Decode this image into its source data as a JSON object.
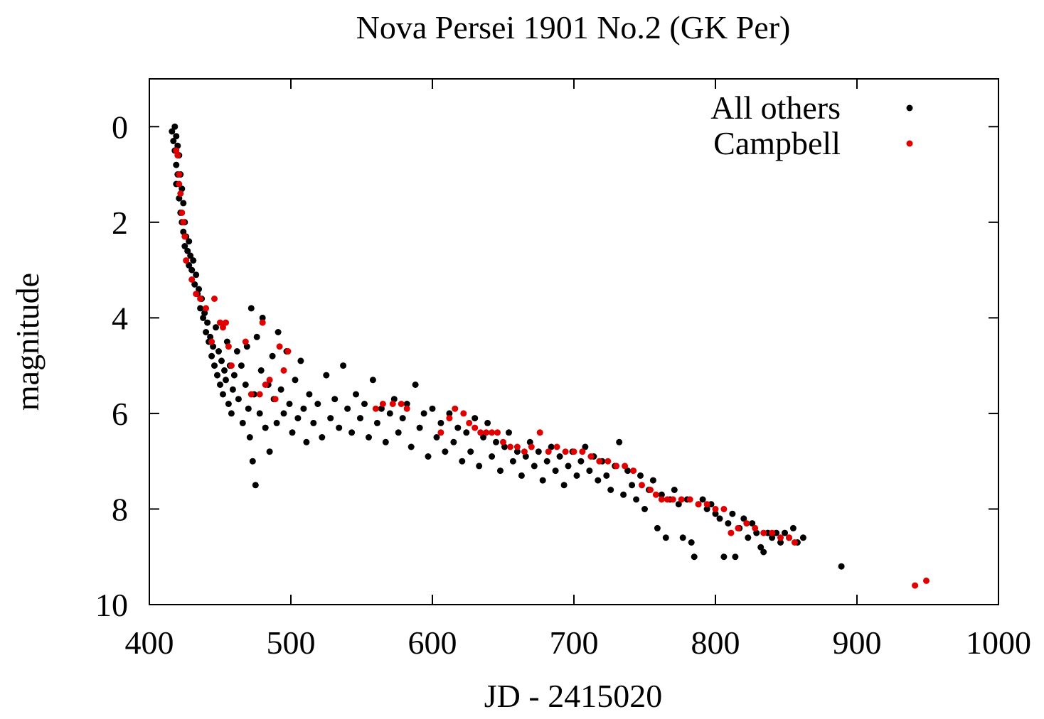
{
  "chart_data": {
    "type": "scatter",
    "title": "Nova Persei 1901 No.2 (GK Per)",
    "xlabel": "JD - 2415020",
    "ylabel": "magnitude",
    "xlim": [
      400,
      1000
    ],
    "ylim": [
      10,
      -1
    ],
    "y_inverted": true,
    "grid": false,
    "legend_position": "top-right",
    "x_ticks": [
      400,
      500,
      600,
      700,
      800,
      900,
      1000
    ],
    "x_tick_labels": [
      "400",
      "500",
      "600",
      "700",
      "800",
      "900",
      "1000"
    ],
    "y_ticks": [
      0,
      2,
      4,
      6,
      8,
      10
    ],
    "y_tick_labels": [
      "0",
      "2",
      "4",
      "6",
      "8",
      "10"
    ],
    "series": [
      {
        "name": "All others",
        "color": "#000000",
        "points": [
          [
            416,
            0.1
          ],
          [
            417,
            0.3
          ],
          [
            418,
            0.0
          ],
          [
            418,
            0.5
          ],
          [
            419,
            0.2
          ],
          [
            419,
            0.8
          ],
          [
            419,
            1.2
          ],
          [
            420,
            0.4
          ],
          [
            420,
            1.0
          ],
          [
            421,
            0.6
          ],
          [
            421,
            1.5
          ],
          [
            422,
            1.0
          ],
          [
            422,
            1.8
          ],
          [
            423,
            1.3
          ],
          [
            423,
            2.0
          ],
          [
            424,
            1.6
          ],
          [
            424,
            2.2
          ],
          [
            425,
            2.0
          ],
          [
            425,
            2.5
          ],
          [
            426,
            2.3
          ],
          [
            427,
            2.6
          ],
          [
            428,
            2.4
          ],
          [
            428,
            2.9
          ],
          [
            429,
            2.7
          ],
          [
            430,
            3.0
          ],
          [
            431,
            2.8
          ],
          [
            432,
            3.3
          ],
          [
            433,
            3.1
          ],
          [
            434,
            3.5
          ],
          [
            435,
            3.4
          ],
          [
            436,
            3.8
          ],
          [
            437,
            3.6
          ],
          [
            438,
            4.0
          ],
          [
            439,
            3.9
          ],
          [
            440,
            4.3
          ],
          [
            441,
            4.1
          ],
          [
            442,
            4.5
          ],
          [
            443,
            4.4
          ],
          [
            444,
            4.8
          ],
          [
            445,
            4.6
          ],
          [
            446,
            5.0
          ],
          [
            447,
            4.2
          ],
          [
            448,
            5.2
          ],
          [
            449,
            4.7
          ],
          [
            450,
            5.4
          ],
          [
            451,
            4.9
          ],
          [
            452,
            5.6
          ],
          [
            453,
            5.1
          ],
          [
            454,
            5.3
          ],
          [
            455,
            4.5
          ],
          [
            456,
            5.8
          ],
          [
            457,
            5.0
          ],
          [
            458,
            6.0
          ],
          [
            459,
            5.5
          ],
          [
            460,
            5.2
          ],
          [
            462,
            4.7
          ],
          [
            463,
            5.7
          ],
          [
            465,
            5.0
          ],
          [
            466,
            6.2
          ],
          [
            468,
            5.4
          ],
          [
            469,
            4.6
          ],
          [
            470,
            5.9
          ],
          [
            471,
            6.5
          ],
          [
            472,
            3.8
          ],
          [
            473,
            7.0
          ],
          [
            474,
            5.6
          ],
          [
            475,
            7.5
          ],
          [
            476,
            4.4
          ],
          [
            478,
            6.0
          ],
          [
            479,
            5.1
          ],
          [
            480,
            4.0
          ],
          [
            482,
            6.3
          ],
          [
            484,
            5.4
          ],
          [
            485,
            6.8
          ],
          [
            487,
            4.8
          ],
          [
            488,
            5.7
          ],
          [
            490,
            6.2
          ],
          [
            491,
            4.3
          ],
          [
            493,
            5.5
          ],
          [
            495,
            6.0
          ],
          [
            497,
            4.7
          ],
          [
            499,
            5.8
          ],
          [
            501,
            6.4
          ],
          [
            503,
            5.3
          ],
          [
            505,
            6.1
          ],
          [
            507,
            4.9
          ],
          [
            509,
            5.9
          ],
          [
            511,
            6.6
          ],
          [
            513,
            5.6
          ],
          [
            516,
            6.2
          ],
          [
            519,
            5.8
          ],
          [
            522,
            6.5
          ],
          [
            525,
            5.2
          ],
          [
            528,
            6.1
          ],
          [
            531,
            5.7
          ],
          [
            534,
            6.3
          ],
          [
            537,
            5.0
          ],
          [
            540,
            5.9
          ],
          [
            543,
            6.4
          ],
          [
            546,
            5.6
          ],
          [
            549,
            6.1
          ],
          [
            552,
            5.8
          ],
          [
            555,
            6.5
          ],
          [
            558,
            5.3
          ],
          [
            561,
            6.2
          ],
          [
            564,
            5.9
          ],
          [
            567,
            6.6
          ],
          [
            570,
            6.0
          ],
          [
            573,
            5.7
          ],
          [
            576,
            6.4
          ],
          [
            579,
            6.1
          ],
          [
            582,
            5.8
          ],
          [
            585,
            6.7
          ],
          [
            588,
            5.4
          ],
          [
            591,
            6.3
          ],
          [
            594,
            6.0
          ],
          [
            597,
            6.9
          ],
          [
            600,
            5.9
          ],
          [
            603,
            6.5
          ],
          [
            606,
            6.2
          ],
          [
            609,
            6.8
          ],
          [
            612,
            6.0
          ],
          [
            615,
            6.6
          ],
          [
            618,
            6.3
          ],
          [
            621,
            7.0
          ],
          [
            624,
            6.4
          ],
          [
            627,
            6.8
          ],
          [
            630,
            6.1
          ],
          [
            633,
            7.1
          ],
          [
            636,
            6.5
          ],
          [
            639,
            6.2
          ],
          [
            642,
            6.9
          ],
          [
            645,
            6.6
          ],
          [
            648,
            7.2
          ],
          [
            651,
            6.7
          ],
          [
            654,
            6.4
          ],
          [
            657,
            7.0
          ],
          [
            660,
            6.8
          ],
          [
            663,
            7.3
          ],
          [
            666,
            6.9
          ],
          [
            669,
            6.6
          ],
          [
            672,
            7.1
          ],
          [
            675,
            6.8
          ],
          [
            678,
            7.4
          ],
          [
            681,
            7.0
          ],
          [
            684,
            6.7
          ],
          [
            687,
            7.2
          ],
          [
            690,
            6.9
          ],
          [
            693,
            7.5
          ],
          [
            696,
            7.1
          ],
          [
            699,
            6.8
          ],
          [
            702,
            7.3
          ],
          [
            705,
            7.0
          ],
          [
            708,
            6.7
          ],
          [
            711,
            7.2
          ],
          [
            714,
            6.9
          ],
          [
            717,
            7.4
          ],
          [
            720,
            7.0
          ],
          [
            723,
            7.3
          ],
          [
            726,
            7.6
          ],
          [
            729,
            7.1
          ],
          [
            732,
            6.6
          ],
          [
            735,
            7.7
          ],
          [
            738,
            7.2
          ],
          [
            741,
            7.5
          ],
          [
            744,
            7.8
          ],
          [
            747,
            7.3
          ],
          [
            750,
            8.0
          ],
          [
            753,
            7.6
          ],
          [
            756,
            7.4
          ],
          [
            759,
            8.4
          ],
          [
            762,
            7.7
          ],
          [
            765,
            8.6
          ],
          [
            768,
            7.8
          ],
          [
            771,
            7.6
          ],
          [
            774,
            7.9
          ],
          [
            777,
            8.6
          ],
          [
            780,
            7.8
          ],
          [
            783,
            8.7
          ],
          [
            785,
            9.0
          ],
          [
            788,
            7.9
          ],
          [
            791,
            7.8
          ],
          [
            794,
            8.0
          ],
          [
            797,
            7.9
          ],
          [
            800,
            8.1
          ],
          [
            803,
            8.2
          ],
          [
            806,
            9.0
          ],
          [
            809,
            8.3
          ],
          [
            812,
            8.1
          ],
          [
            814,
            9.0
          ],
          [
            817,
            8.4
          ],
          [
            820,
            8.2
          ],
          [
            823,
            8.6
          ],
          [
            826,
            8.3
          ],
          [
            829,
            8.5
          ],
          [
            832,
            8.8
          ],
          [
            834,
            8.9
          ],
          [
            837,
            8.5
          ],
          [
            840,
            8.6
          ],
          [
            843,
            8.5
          ],
          [
            846,
            8.7
          ],
          [
            849,
            8.5
          ],
          [
            852,
            8.6
          ],
          [
            855,
            8.4
          ],
          [
            858,
            8.7
          ],
          [
            862,
            8.6
          ],
          [
            889,
            9.2
          ]
        ]
      },
      {
        "name": "Campbell",
        "color": "#e00000",
        "points": [
          [
            419,
            0.5
          ],
          [
            420,
            0.6
          ],
          [
            421,
            1.0
          ],
          [
            421,
            1.2
          ],
          [
            422,
            1.4
          ],
          [
            423,
            1.8
          ],
          [
            424,
            2.0
          ],
          [
            425,
            2.3
          ],
          [
            426,
            2.8
          ],
          [
            430,
            3.2
          ],
          [
            433,
            3.5
          ],
          [
            436,
            3.6
          ],
          [
            440,
            3.8
          ],
          [
            444,
            4.5
          ],
          [
            446,
            3.6
          ],
          [
            450,
            4.1
          ],
          [
            452,
            4.2
          ],
          [
            454,
            4.1
          ],
          [
            456,
            4.6
          ],
          [
            458,
            5.0
          ],
          [
            468,
            4.5
          ],
          [
            472,
            5.6
          ],
          [
            478,
            5.6
          ],
          [
            480,
            4.1
          ],
          [
            482,
            5.4
          ],
          [
            485,
            5.3
          ],
          [
            489,
            5.7
          ],
          [
            492,
            4.6
          ],
          [
            495,
            5.1
          ],
          [
            498,
            4.7
          ],
          [
            560,
            5.9
          ],
          [
            565,
            5.8
          ],
          [
            572,
            5.8
          ],
          [
            578,
            5.8
          ],
          [
            582,
            5.9
          ],
          [
            606,
            6.4
          ],
          [
            612,
            6.1
          ],
          [
            616,
            5.9
          ],
          [
            622,
            6.0
          ],
          [
            626,
            6.2
          ],
          [
            630,
            6.3
          ],
          [
            634,
            6.4
          ],
          [
            638,
            6.4
          ],
          [
            642,
            6.4
          ],
          [
            646,
            6.4
          ],
          [
            650,
            6.6
          ],
          [
            655,
            6.7
          ],
          [
            660,
            6.7
          ],
          [
            665,
            6.8
          ],
          [
            670,
            6.7
          ],
          [
            676,
            6.4
          ],
          [
            682,
            6.8
          ],
          [
            688,
            6.7
          ],
          [
            694,
            6.8
          ],
          [
            700,
            6.8
          ],
          [
            706,
            6.8
          ],
          [
            712,
            6.9
          ],
          [
            718,
            7.0
          ],
          [
            724,
            7.0
          ],
          [
            730,
            7.1
          ],
          [
            736,
            7.1
          ],
          [
            742,
            7.2
          ],
          [
            748,
            7.5
          ],
          [
            754,
            7.6
          ],
          [
            758,
            7.7
          ],
          [
            762,
            7.8
          ],
          [
            766,
            7.8
          ],
          [
            770,
            7.8
          ],
          [
            776,
            7.8
          ],
          [
            782,
            7.8
          ],
          [
            788,
            7.9
          ],
          [
            794,
            7.9
          ],
          [
            800,
            8.0
          ],
          [
            806,
            8.0
          ],
          [
            811,
            8.5
          ],
          [
            816,
            8.4
          ],
          [
            822,
            8.3
          ],
          [
            828,
            8.4
          ],
          [
            834,
            8.5
          ],
          [
            840,
            8.5
          ],
          [
            846,
            8.6
          ],
          [
            852,
            8.6
          ],
          [
            856,
            8.7
          ],
          [
            941,
            9.6
          ],
          [
            949,
            9.5
          ]
        ]
      }
    ]
  }
}
